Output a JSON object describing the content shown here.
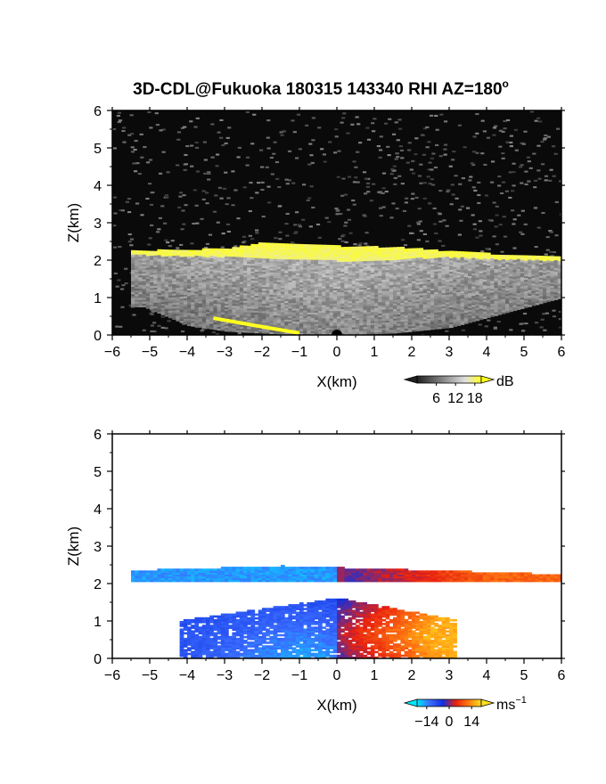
{
  "title": "3D-CDL@Fukuoka 180315 143340 RHI AZ=180",
  "title_superscript": "o",
  "chart_data": [
    {
      "type": "heatmap",
      "name": "reflectivity",
      "xlabel": "X(km)",
      "ylabel": "Z(km)",
      "xlim": [
        -6,
        6
      ],
      "ylim": [
        0,
        6
      ],
      "xticks": [
        "-6",
        "-5",
        "-4",
        "-3",
        "-2",
        "-1",
        "0",
        "1",
        "2",
        "3",
        "4",
        "5",
        "6"
      ],
      "yticks": [
        "0",
        "1",
        "2",
        "3",
        "4",
        "5",
        "6"
      ],
      "background": "#0a0a0a",
      "colorbar": {
        "unit": "dB",
        "ticks": [
          "6",
          "12",
          "18"
        ],
        "range": [
          0,
          20
        ],
        "colors": [
          "#202020",
          "#606060",
          "#a0a0a0",
          "#e0e0e0",
          "#ffff20"
        ]
      },
      "features": {
        "layer_top_profile": [
          [
            -5.6,
            2.22
          ],
          [
            -4.5,
            2.25
          ],
          [
            -3,
            2.28
          ],
          [
            -2,
            2.45
          ],
          [
            -1,
            2.38
          ],
          [
            0,
            2.35
          ],
          [
            1,
            2.33
          ],
          [
            2,
            2.3
          ],
          [
            3,
            2.2
          ],
          [
            4,
            2.15
          ],
          [
            5,
            2.12
          ],
          [
            6,
            2.05
          ]
        ],
        "layer_bottom_profile": [
          [
            -5.6,
            2.12
          ],
          [
            -4.5,
            2.08
          ],
          [
            -3,
            2.06
          ],
          [
            -2,
            2.02
          ],
          [
            -1,
            1.98
          ],
          [
            0,
            1.95
          ],
          [
            1,
            1.98
          ],
          [
            2,
            2.02
          ],
          [
            3,
            2.05
          ],
          [
            4,
            2.0
          ],
          [
            5,
            1.98
          ],
          [
            6,
            1.95
          ]
        ],
        "echo_top_dB": 19,
        "boundary_layer_bottom": [
          [
            -5.2,
            0.75
          ],
          [
            -4,
            0.25
          ],
          [
            -3,
            0.1
          ],
          [
            -1.5,
            0.02
          ],
          [
            0,
            0
          ],
          [
            1.5,
            0.05
          ],
          [
            3,
            0.2
          ],
          [
            6,
            1.0
          ]
        ],
        "boundary_layer_dB": 12,
        "surface_line": [
          [
            -3.3,
            0.45
          ],
          [
            -2,
            0.22
          ],
          [
            -1,
            0.05
          ]
        ]
      }
    },
    {
      "type": "heatmap",
      "name": "doppler_velocity",
      "xlabel": "X(km)",
      "ylabel": "Z(km)",
      "xlim": [
        -6,
        6
      ],
      "ylim": [
        0,
        6
      ],
      "xticks": [
        "-6",
        "-5",
        "-4",
        "-3",
        "-2",
        "-1",
        "0",
        "1",
        "2",
        "3",
        "4",
        "5",
        "6"
      ],
      "yticks": [
        "0",
        "1",
        "2",
        "3",
        "4",
        "5",
        "6"
      ],
      "background": "#ffffff",
      "colorbar": {
        "unit": "ms",
        "unit_exponent": "−1",
        "ticks": [
          "−14",
          "0",
          "14"
        ],
        "range": [
          -20,
          20
        ],
        "colors": [
          "#00e8ff",
          "#3a6cff",
          "#1030e0",
          "#e82010",
          "#ff7a10",
          "#ffe020"
        ]
      },
      "features": {
        "upper_layer": {
          "x": [
            -5.5,
            6
          ],
          "z": [
            2.05,
            2.45
          ],
          "velocity_left": -15,
          "velocity_right": 10
        },
        "lower_flow": {
          "x": [
            -4.2,
            3.2
          ],
          "z": [
            0,
            1.6
          ],
          "velocity_left": -8,
          "velocity_right": 16
        }
      }
    }
  ]
}
